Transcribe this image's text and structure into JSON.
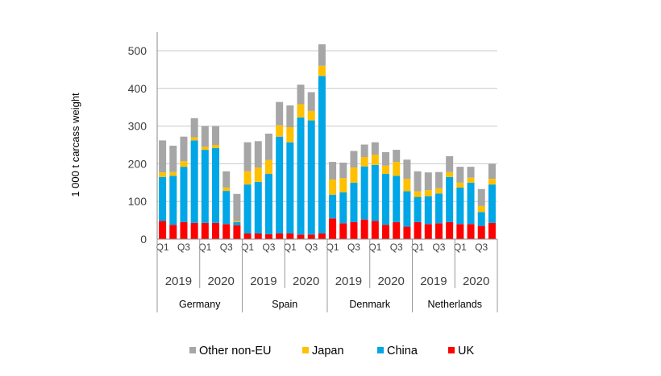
{
  "chart_data": {
    "type": "bar",
    "stacked": true,
    "ylabel": "1 000 t carcass weight",
    "ylim": [
      0,
      500
    ],
    "yticks": [
      0,
      100,
      200,
      300,
      400,
      500
    ],
    "grid": "horizontal",
    "legend_position": "bottom",
    "groups": [
      {
        "country": "Germany",
        "years": [
          "2019",
          "2020"
        ]
      },
      {
        "country": "Spain",
        "years": [
          "2019",
          "2020"
        ]
      },
      {
        "country": "Denmark",
        "years": [
          "2019",
          "2020"
        ]
      },
      {
        "country": "Netherlands",
        "years": [
          "2019",
          "2020"
        ]
      }
    ],
    "quarter_labels": [
      "Q1",
      "",
      "Q3",
      ""
    ],
    "series": [
      {
        "name": "UK",
        "color": "#ff0000",
        "values": [
          48,
          38,
          45,
          43,
          43,
          43,
          40,
          37,
          15,
          15,
          13,
          15,
          15,
          12,
          12,
          15,
          55,
          42,
          45,
          52,
          48,
          38,
          45,
          33,
          45,
          40,
          42,
          45,
          40,
          40,
          35,
          43
        ]
      },
      {
        "name": "China",
        "color": "#00a6e6",
        "values": [
          117,
          130,
          147,
          219,
          194,
          199,
          88,
          8,
          130,
          137,
          160,
          257,
          242,
          311,
          303,
          418,
          63,
          82,
          105,
          141,
          149,
          135,
          123,
          94,
          67,
          74,
          79,
          120,
          97,
          110,
          37,
          102
        ]
      },
      {
        "name": "Japan",
        "color": "#ffc000",
        "values": [
          12,
          10,
          15,
          8,
          8,
          8,
          9,
          3,
          35,
          38,
          37,
          30,
          40,
          35,
          25,
          27,
          40,
          38,
          40,
          25,
          27,
          22,
          37,
          33,
          15,
          16,
          14,
          13,
          13,
          13,
          16,
          15
        ]
      },
      {
        "name": "Other non-EU",
        "color": "#a6a6a6",
        "values": [
          85,
          70,
          65,
          51,
          55,
          50,
          43,
          72,
          77,
          70,
          70,
          62,
          58,
          52,
          50,
          57,
          47,
          41,
          44,
          33,
          33,
          36,
          32,
          51,
          53,
          47,
          43,
          42,
          42,
          29,
          45,
          40
        ]
      }
    ],
    "legend_order": [
      "Other non-EU",
      "Japan",
      "China",
      "UK"
    ]
  }
}
